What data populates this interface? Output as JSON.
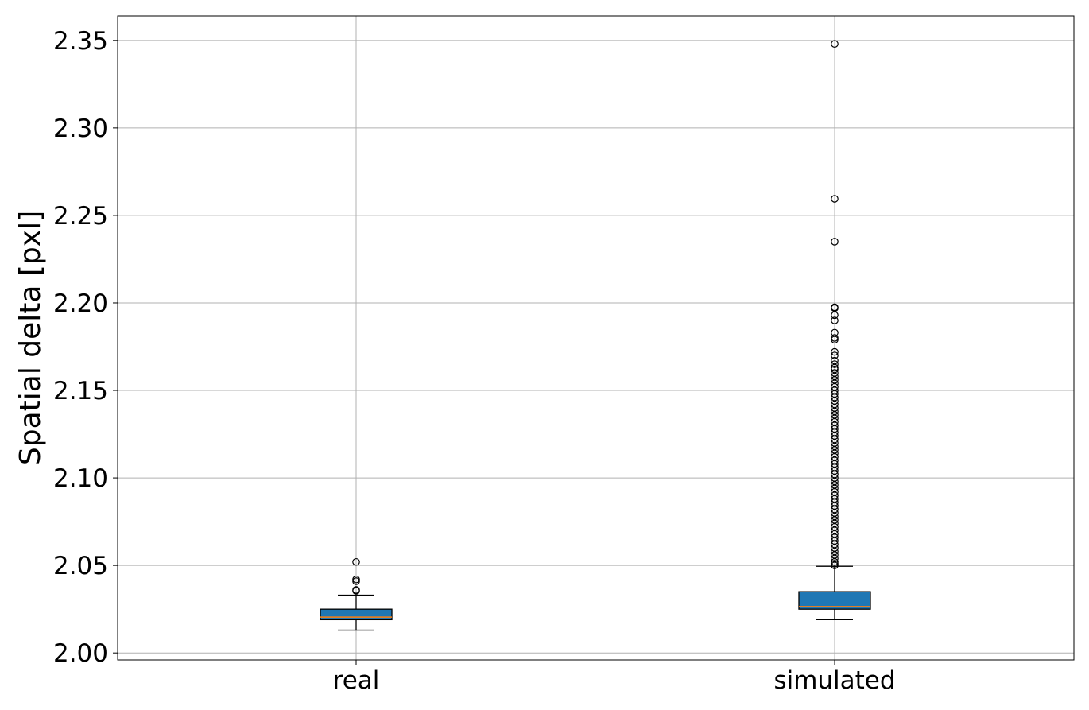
{
  "chart_data": {
    "type": "boxplot",
    "title": "",
    "xlabel": "",
    "ylabel": "Spatial delta [pxl]",
    "ylim": [
      1.996,
      2.364
    ],
    "grid": true,
    "categories": [
      "real",
      "simulated"
    ],
    "yticks": [
      2.0,
      2.05,
      2.1,
      2.15,
      2.2,
      2.25,
      2.3,
      2.35
    ],
    "ytick_labels": [
      "2.00",
      "2.05",
      "2.10",
      "2.15",
      "2.20",
      "2.25",
      "2.30",
      "2.35"
    ],
    "box_color": "#1f77b4",
    "median_color": "#ff7f0e",
    "boxes": [
      {
        "label": "real",
        "whisker_low": 2.013,
        "q1": 2.019,
        "median": 2.0205,
        "q3": 2.025,
        "whisker_high": 2.033,
        "outliers": [
          2.052,
          2.042,
          2.041,
          2.036,
          2.0355
        ]
      },
      {
        "label": "simulated",
        "whisker_low": 2.019,
        "q1": 2.025,
        "median": 2.0265,
        "q3": 2.035,
        "whisker_high": 2.0495,
        "outliers": [
          2.348,
          2.2595,
          2.235,
          2.1975,
          2.197,
          2.193,
          2.19,
          2.183,
          2.18,
          2.179,
          2.172,
          2.17,
          2.167,
          2.165,
          2.163,
          2.162,
          2.16,
          2.158,
          2.156,
          2.154,
          2.152,
          2.15,
          2.148,
          2.146,
          2.144,
          2.142,
          2.14,
          2.138,
          2.136,
          2.134,
          2.132,
          2.13,
          2.128,
          2.126,
          2.124,
          2.122,
          2.12,
          2.118,
          2.116,
          2.114,
          2.112,
          2.11,
          2.108,
          2.106,
          2.104,
          2.102,
          2.1,
          2.098,
          2.096,
          2.094,
          2.092,
          2.09,
          2.088,
          2.086,
          2.084,
          2.082,
          2.08,
          2.078,
          2.076,
          2.074,
          2.072,
          2.07,
          2.068,
          2.066,
          2.064,
          2.062,
          2.06,
          2.058,
          2.056,
          2.054,
          2.052,
          2.051,
          2.05
        ]
      }
    ]
  }
}
